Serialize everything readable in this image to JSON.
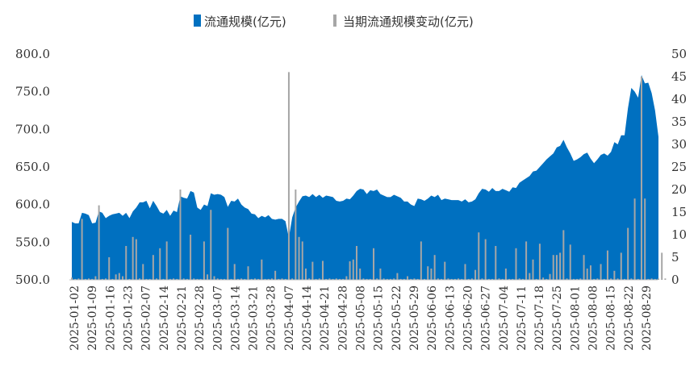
{
  "colors": {
    "area": "#0070c0",
    "bars": "#a6a6a6",
    "text": "#333333"
  },
  "chart_data": {
    "type": "area",
    "legend": {
      "placement": "top-center",
      "entries": [
        "流通规模(亿元)",
        "当期流通规模变动(亿元)"
      ]
    },
    "grid": false,
    "y_left": {
      "ylim": [
        500,
        800
      ],
      "ticks": [
        "500.0",
        "550.0",
        "600.0",
        "650.0",
        "700.0",
        "750.0",
        "800.0"
      ]
    },
    "y_right": {
      "ylim": [
        0,
        50
      ],
      "ticks": [
        "0",
        "5",
        "10",
        "15",
        "20",
        "25",
        "30",
        "35",
        "40",
        "45",
        "50"
      ]
    },
    "x_tick_labels": [
      "2025-01-02",
      "2025-01-09",
      "2025-01-16",
      "2025-01-23",
      "2025-02-07",
      "2025-02-14",
      "2025-02-21",
      "2025-02-28",
      "2025-03-07",
      "2025-03-14",
      "2025-03-21",
      "2025-03-28",
      "2025-04-07",
      "2025-04-14",
      "2025-04-21",
      "2025-04-28",
      "2025-05-08",
      "2025-05-15",
      "2025-05-22",
      "2025-05-29",
      "2025-06-06",
      "2025-06-13",
      "2025-06-20",
      "2025-06-27",
      "2025-07-04",
      "2025-07-11",
      "2025-07-18",
      "2025-07-25",
      "2025-08-01",
      "2025-08-08",
      "2025-08-15",
      "2025-08-22",
      "2025-08-29"
    ],
    "series": [
      {
        "name": "流通规模(亿元)",
        "kind": "area",
        "axis": "left",
        "values": [
          577,
          575,
          575,
          589,
          588,
          586,
          575,
          576,
          591,
          589,
          582,
          585,
          587,
          588,
          589,
          585,
          589,
          582,
          591,
          596,
          603,
          603,
          605,
          595,
          605,
          598,
          590,
          588,
          593,
          585,
          592,
          590,
          611,
          609,
          608,
          618,
          616,
          596,
          593,
          600,
          598,
          615,
          613,
          614,
          613,
          610,
          597,
          605,
          604,
          608,
          600,
          596,
          594,
          588,
          587,
          582,
          585,
          583,
          586,
          581,
          580,
          581,
          581,
          578,
          556,
          583,
          596,
          604,
          611,
          612,
          610,
          614,
          610,
          613,
          609,
          612,
          611,
          610,
          605,
          604,
          605,
          608,
          607,
          612,
          618,
          621,
          620,
          614,
          619,
          618,
          620,
          614,
          612,
          610,
          610,
          613,
          611,
          609,
          604,
          604,
          600,
          598,
          608,
          607,
          605,
          608,
          612,
          610,
          613,
          606,
          608,
          607,
          606,
          606,
          606,
          604,
          607,
          603,
          604,
          607,
          615,
          621,
          620,
          617,
          622,
          618,
          618,
          621,
          619,
          617,
          623,
          622,
          629,
          632,
          635,
          638,
          644,
          645,
          650,
          655,
          660,
          664,
          668,
          676,
          678,
          686,
          676,
          668,
          658,
          660,
          663,
          667,
          669,
          661,
          655,
          660,
          666,
          668,
          665,
          670,
          683,
          680,
          692,
          692,
          728,
          755,
          750,
          742,
          772,
          761,
          762,
          748,
          725,
          690
        ]
      },
      {
        "name": "当期流通规模变动(亿元)",
        "kind": "bar",
        "axis": "right",
        "values": [
          0.5,
          0.2,
          0.3,
          13.5,
          0.2,
          0.3,
          0.2,
          0.8,
          16.5,
          0.2,
          0.3,
          5,
          0.2,
          1.2,
          1.5,
          0.8,
          7.5,
          0.2,
          9.5,
          9,
          0.3,
          3.5,
          0.2,
          0.2,
          5.5,
          0.3,
          7,
          0.2,
          8.5,
          0.2,
          0.3,
          0.2,
          20,
          0.3,
          0.2,
          10,
          0.3,
          0.2,
          0.2,
          8.5,
          1.2,
          15.5,
          0.8,
          0.3,
          0.2,
          0.2,
          11.5,
          0.2,
          3.5,
          0.2,
          0.3,
          0.2,
          3,
          0.2,
          0.3,
          0.2,
          4.5,
          0.2,
          0.2,
          0.3,
          2,
          0.2,
          0.3,
          0.2,
          46,
          0.3,
          20,
          9.5,
          8.5,
          2.5,
          0.3,
          4,
          0.2,
          0.3,
          4.2,
          0.2,
          0.3,
          0.2,
          0.3,
          0.2,
          0.2,
          0.8,
          4.1,
          4.5,
          7.5,
          2.5,
          0.3,
          0.2,
          0.2,
          7,
          0.3,
          2.5,
          0.3,
          0.2,
          0.2,
          0.3,
          1.5,
          0.2,
          0.2,
          0.8,
          0.2,
          0.3,
          0.2,
          8.5,
          0.2,
          3,
          2.5,
          5.5,
          0.3,
          0.2,
          4,
          0.3,
          0.2,
          0.2,
          0.3,
          0.2,
          3.5,
          0.2,
          0.3,
          2.2,
          10.5,
          0.3,
          9,
          0.2,
          0.2,
          7.5,
          0.3,
          0.2,
          2.5,
          0.2,
          0.2,
          7,
          0.3,
          0.2,
          8.5,
          1.5,
          4.5,
          0.2,
          8,
          0.5,
          0.2,
          1.3,
          5.5,
          5.5,
          6,
          11,
          0.3,
          7.8,
          0.2,
          0.2,
          0.3,
          5.5,
          2.5,
          3.2,
          0.2,
          0.3,
          3.5,
          0.2,
          6.5,
          0.3,
          2,
          0.3,
          6,
          0.2,
          11.5,
          0.3,
          18,
          0.2,
          45,
          18,
          0.2,
          0.3,
          0.2,
          0.3,
          6,
          0.3
        ]
      }
    ]
  }
}
